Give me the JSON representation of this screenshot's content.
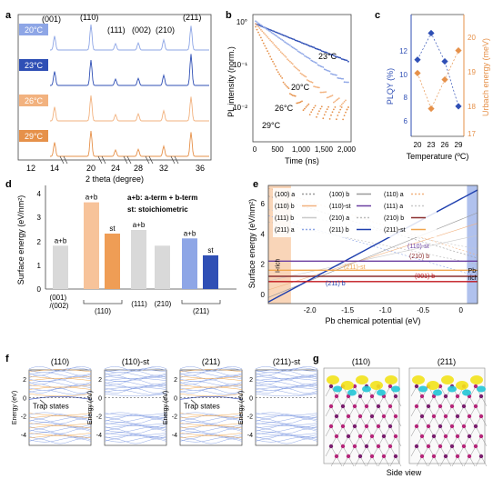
{
  "panel_labels": [
    "a",
    "b",
    "c",
    "d",
    "e",
    "f",
    "g"
  ],
  "panel_a": {
    "peaks": [
      "(001)",
      "(110)",
      "(111)",
      "(002)",
      "(210)",
      "(211)"
    ],
    "temps": [
      {
        "label": "20°C",
        "color": "#8ea6e6"
      },
      {
        "label": "23°C",
        "color": "#2f4fb5"
      },
      {
        "label": "26°C",
        "color": "#f2b27f"
      },
      {
        "label": "29°C",
        "color": "#e6914a"
      }
    ],
    "xticks": [
      "12",
      "14",
      "20",
      "24",
      "28",
      "32",
      "36"
    ],
    "xlabel": "2 theta (degree)"
  },
  "chart_data": [
    {
      "type": "scatter",
      "panel": "b",
      "xlabel": "Time (ns)",
      "ylabel": "PL intensity (norm.)",
      "xlim": [
        0,
        2000
      ],
      "ylim": [
        0.001,
        1
      ],
      "log_y": true,
      "xticks": [
        "0",
        "500",
        "1,000",
        "1,500",
        "2,000"
      ],
      "yticks": [
        "10°",
        "10⁻¹",
        "10⁻²"
      ],
      "series": [
        {
          "name": "23°C",
          "color": "#2f4fb5",
          "tau": 900
        },
        {
          "name": "20°C",
          "color": "#8ea6e6",
          "tau": 520
        },
        {
          "name": "26°C",
          "color": "#f2b27f",
          "tau": 330
        },
        {
          "name": "29°C",
          "color": "#e6914a",
          "tau": 180
        }
      ]
    },
    {
      "type": "line",
      "panel": "c",
      "xlabel": "Temperature (ºC)",
      "ylabel_left": "PLQY (%)",
      "ylabel_right": "Urbach energy (meV)",
      "categories": [
        "20",
        "23",
        "26",
        "29"
      ],
      "y_left_ticks": [
        "6",
        "8",
        "10",
        "12"
      ],
      "y_right_ticks": [
        "17",
        "18",
        "19",
        "20"
      ],
      "ylim_left": [
        5.5,
        12.5
      ],
      "ylim_right": [
        16.8,
        20.4
      ],
      "series": [
        {
          "name": "PLQY (%)",
          "color": "#2f4fb5",
          "values": [
            10.0,
            11.6,
            9.9,
            7.2
          ]
        },
        {
          "name": "Urbach energy (meV)",
          "color": "#e6914a",
          "values": [
            18.7,
            17.6,
            18.5,
            19.4
          ]
        }
      ]
    },
    {
      "type": "bar",
      "panel": "d",
      "ylabel": "Surface energy (eV/nm²)",
      "ylim": [
        0,
        4.3
      ],
      "yticks": [
        "0",
        "1",
        "2",
        "3",
        "4"
      ],
      "categories": [
        "(001)\n/(002)",
        "(110)",
        "(111)",
        "(210)",
        "(211)"
      ],
      "bars": [
        {
          "value": 1.8,
          "label": "a+b",
          "color": "#d9d9d9",
          "group": 0
        },
        {
          "value": 3.6,
          "label": "a+b",
          "color": "#f7c39a",
          "group": 1
        },
        {
          "value": 2.3,
          "label": "st",
          "color": "#ef9d55",
          "group": 1
        },
        {
          "value": 2.45,
          "label": "a+b",
          "color": "#d9d9d9",
          "group": 2
        },
        {
          "value": 1.8,
          "label": "",
          "color": "#d9d9d9",
          "group": 3
        },
        {
          "value": 2.1,
          "label": "a+b",
          "color": "#8ea6e6",
          "group": 4
        },
        {
          "value": 1.4,
          "label": "st",
          "color": "#2f4fb5",
          "group": 4
        }
      ],
      "legend_text_1": "a+b: a-term + b-term",
      "legend_text_2": "st: stoichiometric"
    },
    {
      "type": "line",
      "panel": "e",
      "xlabel": "Pb chemical potential (eV)",
      "ylabel": "Surface energy (eV/nm²)",
      "xlim": [
        -2.55,
        0.22
      ],
      "ylim": [
        -0.6,
        7.2
      ],
      "xticks": [
        "-2.0",
        "-1.5",
        "-1.0",
        "-0.5",
        "0"
      ],
      "yticks": [
        "0",
        "2",
        "4",
        "6"
      ],
      "series": [
        {
          "name": "(100) a",
          "color": "#999999",
          "dash": "2,2",
          "y0": 6.5,
          "y1": 2.4
        },
        {
          "name": "(110) a",
          "color": "#f2b27f",
          "dash": "2,2",
          "y0": 7.0,
          "y1": 2.6
        },
        {
          "name": "(111) a",
          "color": "#c9c9c9",
          "dash": "2,2",
          "y0": 5.6,
          "y1": 3.0
        },
        {
          "name": "(210) a",
          "color": "#bbbbbb",
          "dash": "2,2",
          "y0": 4.8,
          "y1": 2.0
        },
        {
          "name": "(211) a",
          "color": "#8ea6e6",
          "dash": "2,2",
          "y0": 5.2,
          "y1": 1.2
        },
        {
          "name": "(100) b",
          "color": "#999999",
          "dash": "",
          "y0": -0.2,
          "y1": 5.4
        },
        {
          "name": "(110) b",
          "color": "#f2b27f",
          "dash": "",
          "y0": 0.3,
          "y1": 4.7
        },
        {
          "name": "(111) b",
          "color": "#c9c9c9",
          "dash": "",
          "y0": 0.9,
          "y1": 3.9
        },
        {
          "name": "(210) b",
          "color": "#8c2f2f",
          "dash": "",
          "y0": 1.2,
          "y1": 1.2
        },
        {
          "name": "(211) b",
          "color": "#1e3fae",
          "dash": "",
          "y0": -0.5,
          "y1": 6.9
        },
        {
          "name": "(110)-st",
          "color": "#6b3fa0",
          "dash": "",
          "y0": 2.2,
          "y1": 2.2
        },
        {
          "name": "(211)-st",
          "color": "#f0a64f",
          "dash": "",
          "y0": 1.6,
          "y1": 1.6
        },
        {
          "name": "(001) b",
          "color": "#c0141c",
          "dash": "",
          "y0": 0.85,
          "y1": 0.85
        }
      ],
      "legend": [
        [
          "(100) a",
          "(100) b",
          "(110) a"
        ],
        [
          "(110) b",
          "(110)-st",
          "(111) a"
        ],
        [
          "(111) b",
          "(210) a",
          "(210) b"
        ],
        [
          "(211) a",
          "(211) b",
          "(211)-st"
        ]
      ],
      "line_labels": [
        "(110)-st",
        "(210) b",
        "(211)-st",
        "(001) b",
        "(211) b"
      ],
      "region_left": "I-rich",
      "region_right": "Pb-rich"
    }
  ],
  "panel_f": {
    "titles": [
      "(110)",
      "(110)-st",
      "(211)",
      "(211)-st"
    ],
    "ylabel": "Energy (eV)",
    "yticks": [
      "2",
      "0",
      "-2",
      "-4"
    ],
    "annotation": "Trap states"
  },
  "panel_g": {
    "titles": [
      "(110)",
      "(211)"
    ],
    "caption": "Side view"
  }
}
